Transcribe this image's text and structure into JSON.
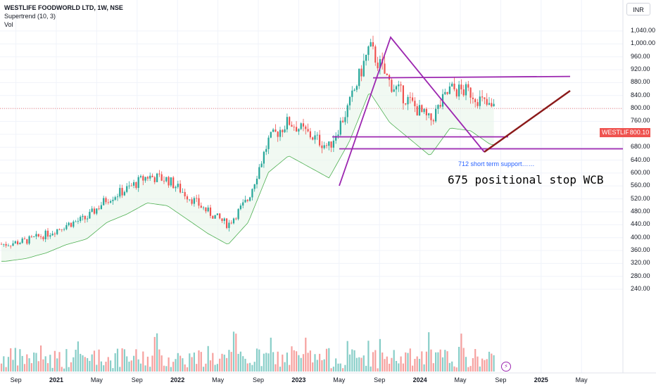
{
  "legend": {
    "symbol": "WESTLIFE FOODWORLD LTD, 1W, NSE",
    "indicator1": "Supertrend (10, 3)",
    "indicator2": "Vol"
  },
  "currency": "INR",
  "last_price": {
    "ticker": "WESTLIFE",
    "value": "800.10"
  },
  "annotations": {
    "support": "712 short term support……",
    "stop": "675 positional stop WCB"
  },
  "colors": {
    "up": "#26a69a",
    "down": "#ef5350",
    "drawing": "#9c27b0",
    "trend": "#8b1a1a"
  },
  "chart_data": {
    "type": "candlestick",
    "y_ticks": [
      "1,040.00",
      "1,000.00",
      "960.00",
      "920.00",
      "880.00",
      "840.00",
      "800.00",
      "760.00",
      "720.00",
      "680.00",
      "640.00",
      "600.00",
      "560.00",
      "520.00",
      "480.00",
      "440.00",
      "400.00",
      "360.00",
      "320.00",
      "280.00",
      "240.00"
    ],
    "x_ticks": [
      {
        "label": "Sep",
        "bold": false
      },
      {
        "label": "2021",
        "bold": true
      },
      {
        "label": "May",
        "bold": false
      },
      {
        "label": "Sep",
        "bold": false
      },
      {
        "label": "2022",
        "bold": true
      },
      {
        "label": "May",
        "bold": false
      },
      {
        "label": "Sep",
        "bold": false
      },
      {
        "label": "2023",
        "bold": true
      },
      {
        "label": "May",
        "bold": false
      },
      {
        "label": "Sep",
        "bold": false
      },
      {
        "label": "2024",
        "bold": true
      },
      {
        "label": "May",
        "bold": false
      },
      {
        "label": "Sep",
        "bold": false
      },
      {
        "label": "2025",
        "bold": true
      },
      {
        "label": "May",
        "bold": false
      }
    ],
    "price_path": [
      {
        "date": "2020-08",
        "close": 380
      },
      {
        "date": "2020-10",
        "close": 390
      },
      {
        "date": "2020-12",
        "close": 410
      },
      {
        "date": "2021-02",
        "close": 440
      },
      {
        "date": "2021-04",
        "close": 460
      },
      {
        "date": "2021-06",
        "close": 520
      },
      {
        "date": "2021-08",
        "close": 550
      },
      {
        "date": "2021-10",
        "close": 590
      },
      {
        "date": "2021-12",
        "close": 580
      },
      {
        "date": "2022-02",
        "close": 530
      },
      {
        "date": "2022-04",
        "close": 480
      },
      {
        "date": "2022-06",
        "close": 440
      },
      {
        "date": "2022-08",
        "close": 520
      },
      {
        "date": "2022-10",
        "close": 700
      },
      {
        "date": "2022-12",
        "close": 760
      },
      {
        "date": "2023-02",
        "close": 720
      },
      {
        "date": "2023-04",
        "close": 680
      },
      {
        "date": "2023-06",
        "close": 810
      },
      {
        "date": "2023-08",
        "close": 990
      },
      {
        "date": "2023-10",
        "close": 880
      },
      {
        "date": "2023-12",
        "close": 820
      },
      {
        "date": "2024-02",
        "close": 760
      },
      {
        "date": "2024-04",
        "close": 860
      },
      {
        "date": "2024-06",
        "close": 850
      },
      {
        "date": "2024-08",
        "close": 800
      }
    ],
    "last_close": 800.1,
    "levels": [
      {
        "price": 712,
        "label": "712 short term support……"
      },
      {
        "price": 675,
        "label": "675 positional stop WCB"
      },
      {
        "price": 897,
        "label": ""
      }
    ]
  }
}
